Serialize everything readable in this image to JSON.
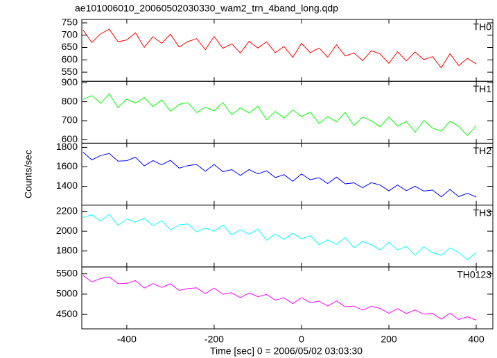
{
  "chart_data": {
    "type": "line",
    "title": "ae101006010_20060502030330_wam2_trn_4band_long.qdp",
    "x_label": "Time [sec] 0 = 2006/05/02 03:03:30",
    "y_label": "Counts/sec",
    "x": [
      -500,
      -480,
      -460,
      -440,
      -420,
      -400,
      -380,
      -360,
      -340,
      -320,
      -300,
      -280,
      -260,
      -240,
      -220,
      -200,
      -180,
      -160,
      -140,
      -120,
      -100,
      -80,
      -60,
      -40,
      -20,
      0,
      20,
      40,
      60,
      80,
      100,
      120,
      140,
      160,
      180,
      200,
      220,
      240,
      260,
      280,
      300,
      320,
      340,
      360,
      380,
      400
    ],
    "xlim": [
      -503,
      438
    ],
    "xticks": [
      -400,
      -200,
      0,
      200,
      400
    ],
    "series": [
      {
        "name": "TH0",
        "color": "#ff0000",
        "ylim": [
          513,
          764
        ],
        "yticks": [
          550,
          600,
          650,
          700,
          750
        ],
        "values": [
          721,
          670,
          706,
          724,
          673,
          681,
          710,
          651,
          694,
          667,
          704,
          652,
          674,
          686,
          641,
          695,
          647,
          665,
          628,
          675,
          648,
          673,
          629,
          654,
          610,
          667,
          629,
          648,
          611,
          661,
          616,
          628,
          597,
          637,
          624,
          586,
          633,
          596,
          632,
          601,
          613,
          568,
          625,
          577,
          606,
          583
        ]
      },
      {
        "name": "TH1",
        "color": "#00ff00",
        "ylim": [
          582,
          907
        ],
        "yticks": [
          600,
          700,
          800,
          900
        ],
        "values": [
          812,
          832,
          792,
          841,
          769,
          813,
          793,
          822,
          774,
          810,
          750,
          786,
          795,
          743,
          771,
          751,
          796,
          732,
          768,
          740,
          776,
          705,
          749,
          713,
          757,
          722,
          746,
          686,
          722,
          694,
          743,
          675,
          719,
          699,
          668,
          720,
          672,
          696,
          640,
          701,
          661,
          645,
          697,
          670,
          622,
          674
        ]
      },
      {
        "name": "TH2",
        "color": "#0000ff",
        "ylim": [
          1207,
          1843
        ],
        "yticks": [
          1400,
          1600,
          1800
        ],
        "values": [
          1750,
          1671,
          1716,
          1737,
          1658,
          1663,
          1699,
          1610,
          1665,
          1621,
          1667,
          1587,
          1613,
          1624,
          1554,
          1625,
          1551,
          1571,
          1512,
          1573,
          1528,
          1559,
          1490,
          1520,
          1451,
          1527,
          1467,
          1488,
          1429,
          1494,
          1425,
          1436,
          1386,
          1437,
          1413,
          1353,
          1414,
          1355,
          1400,
          1351,
          1362,
          1292,
          1368,
          1294,
          1329,
          1290
        ]
      },
      {
        "name": "TH3",
        "color": "#00ffff",
        "ylim": [
          1639,
          2263
        ],
        "yticks": [
          1800,
          2000,
          2200
        ],
        "values": [
          2138,
          2165,
          2102,
          2171,
          2060,
          2124,
          2091,
          2130,
          2055,
          2106,
          2013,
          2064,
          2073,
          1992,
          2032,
          1999,
          2062,
          1963,
          2014,
          1969,
          2020,
          1909,
          1972,
          1916,
          1979,
          1922,
          1955,
          1862,
          1913,
          1868,
          1937,
          1832,
          1896,
          1863,
          1812,
          1887,
          1812,
          1845,
          1758,
          1845,
          1782,
          1756,
          1831,
          1786,
          1711,
          1786
        ]
      },
      {
        "name": "TH0123",
        "color": "#ff00ff",
        "ylim": [
          4144,
          5669
        ],
        "yticks": [
          4500,
          5000,
          5500
        ],
        "values": [
          5460,
          5297,
          5385,
          5422,
          5259,
          5267,
          5334,
          5151,
          5259,
          5166,
          5253,
          5091,
          5138,
          5155,
          5013,
          5150,
          4997,
          5035,
          4912,
          5029,
          4937,
          4994,
          4851,
          4909,
          4766,
          4913,
          4791,
          4828,
          4705,
          4833,
          4690,
          4707,
          4605,
          4702,
          4649,
          4527,
          4644,
          4521,
          4609,
          4506,
          4523,
          4381,
          4528,
          4375,
          4443,
          4360
        ]
      }
    ]
  }
}
